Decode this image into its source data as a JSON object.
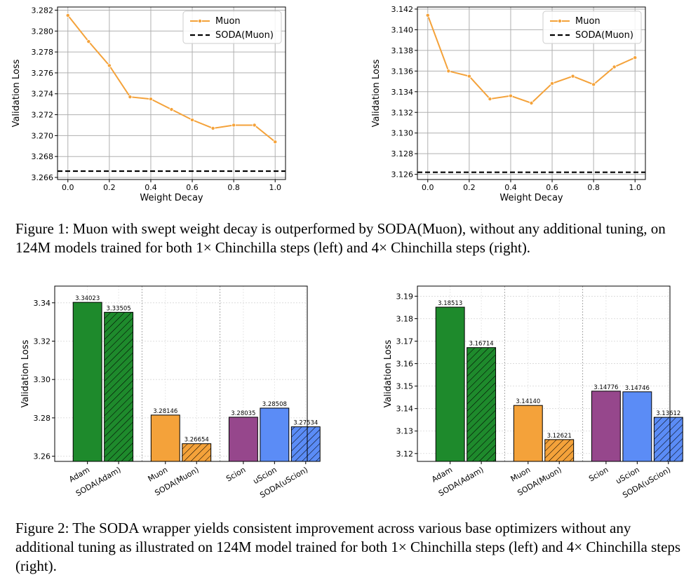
{
  "chart_data": [
    {
      "id": "fig1-left",
      "type": "line",
      "xlabel": "Weight Decay",
      "ylabel": "Validation Loss",
      "xlim": [
        -0.05,
        1.05
      ],
      "ylim": [
        3.2658,
        3.2823
      ],
      "xticks": [
        "0.0",
        "0.2",
        "0.4",
        "0.6",
        "0.8",
        "1.0"
      ],
      "xtick_values": [
        0.0,
        0.2,
        0.4,
        0.6,
        0.8,
        1.0
      ],
      "yticks": [
        "3.266",
        "3.268",
        "3.270",
        "3.272",
        "3.274",
        "3.276",
        "3.278",
        "3.280",
        "3.282"
      ],
      "ytick_values": [
        3.266,
        3.268,
        3.27,
        3.272,
        3.274,
        3.276,
        3.278,
        3.28,
        3.282
      ],
      "grid": true,
      "legend_position": "top-right",
      "series": [
        {
          "name": "Muon",
          "color": "#f4a23a",
          "x": [
            0.0,
            0.1,
            0.2,
            0.3,
            0.4,
            0.5,
            0.6,
            0.7,
            0.8,
            0.9,
            1.0
          ],
          "y": [
            3.2815,
            3.279,
            3.2767,
            3.2737,
            3.2735,
            3.2725,
            3.2715,
            3.2707,
            3.271,
            3.271,
            3.2694
          ]
        }
      ],
      "hlines": [
        {
          "name": "SODA(Muon)",
          "y": 3.2666,
          "color": "#000000"
        }
      ]
    },
    {
      "id": "fig1-right",
      "type": "line",
      "xlabel": "Weight Decay",
      "ylabel": "Validation Loss",
      "xlim": [
        -0.05,
        1.05
      ],
      "ylim": [
        3.1255,
        3.1422
      ],
      "xticks": [
        "0.0",
        "0.2",
        "0.4",
        "0.6",
        "0.8",
        "1.0"
      ],
      "xtick_values": [
        0.0,
        0.2,
        0.4,
        0.6,
        0.8,
        1.0
      ],
      "yticks": [
        "3.126",
        "3.128",
        "3.130",
        "3.132",
        "3.134",
        "3.136",
        "3.138",
        "3.140",
        "3.142"
      ],
      "ytick_values": [
        3.126,
        3.128,
        3.13,
        3.132,
        3.134,
        3.136,
        3.138,
        3.14,
        3.142
      ],
      "grid": true,
      "legend_position": "top-right",
      "series": [
        {
          "name": "Muon",
          "color": "#f4a23a",
          "x": [
            0.0,
            0.1,
            0.2,
            0.3,
            0.4,
            0.5,
            0.6,
            0.7,
            0.8,
            0.9,
            1.0
          ],
          "y": [
            3.1414,
            3.136,
            3.1355,
            3.1333,
            3.1336,
            3.1329,
            3.1348,
            3.1355,
            3.1347,
            3.1364,
            3.1373
          ]
        }
      ],
      "hlines": [
        {
          "name": "SODA(Muon)",
          "y": 3.1262,
          "color": "#000000"
        }
      ]
    },
    {
      "id": "fig2-left",
      "type": "bar",
      "ylabel": "Validation Loss",
      "ylim": [
        3.2573,
        3.3487
      ],
      "yticks": [
        "3.26",
        "3.28",
        "3.30",
        "3.32",
        "3.34"
      ],
      "ytick_values": [
        3.26,
        3.28,
        3.3,
        3.32,
        3.34
      ],
      "grid": true,
      "categories": [
        "Adam",
        "SODA(Adam)",
        "Muon",
        "SODA(Muon)",
        "Scion",
        "uScion",
        "SODA(uScion)"
      ],
      "values": [
        3.34023,
        3.33505,
        3.28146,
        3.26654,
        3.28035,
        3.28508,
        3.27534
      ],
      "labels": [
        "3.34023",
        "3.33505",
        "3.28146",
        "3.26654",
        "3.28035",
        "3.28508",
        "3.27534"
      ],
      "colors": [
        "#1e8a2c",
        "#1e8a2c",
        "#f4a23a",
        "#f4a23a",
        "#96478c",
        "#5b8cf6",
        "#5b8cf6"
      ],
      "hatched": [
        false,
        true,
        false,
        true,
        false,
        false,
        true
      ],
      "group_separators_after": [
        1,
        3
      ]
    },
    {
      "id": "fig2-right",
      "type": "bar",
      "ylabel": "Validation Loss",
      "ylim": [
        3.1165,
        3.1945
      ],
      "yticks": [
        "3.12",
        "3.13",
        "3.14",
        "3.15",
        "3.16",
        "3.17",
        "3.18",
        "3.19"
      ],
      "ytick_values": [
        3.12,
        3.13,
        3.14,
        3.15,
        3.16,
        3.17,
        3.18,
        3.19
      ],
      "grid": true,
      "categories": [
        "Adam",
        "SODA(Adam)",
        "Muon",
        "SODA(Muon)",
        "Scion",
        "uScion",
        "SODA(uScion)"
      ],
      "values": [
        3.18513,
        3.16714,
        3.1414,
        3.12621,
        3.14776,
        3.14746,
        3.13612
      ],
      "labels": [
        "3.18513",
        "3.16714",
        "3.14140",
        "3.12621",
        "3.14776",
        "3.14746",
        "3.13612"
      ],
      "colors": [
        "#1e8a2c",
        "#1e8a2c",
        "#f4a23a",
        "#f4a23a",
        "#96478c",
        "#5b8cf6",
        "#5b8cf6"
      ],
      "hatched": [
        false,
        true,
        false,
        true,
        false,
        false,
        true
      ],
      "group_separators_after": [
        1,
        3
      ]
    }
  ],
  "captions": {
    "fig1": "Figure 1: Muon with swept weight decay is outperformed by SODA(Muon), without any additional tuning, on 124M models trained for both 1× Chinchilla steps (left) and 4× Chinchilla steps (right).",
    "fig2": "Figure 2: The SODA wrapper yields consistent improvement across various base optimizers without any additional tuning as illustrated on 124M model trained for both 1× Chinchilla steps (left) and 4× Chinchilla steps (right)."
  }
}
